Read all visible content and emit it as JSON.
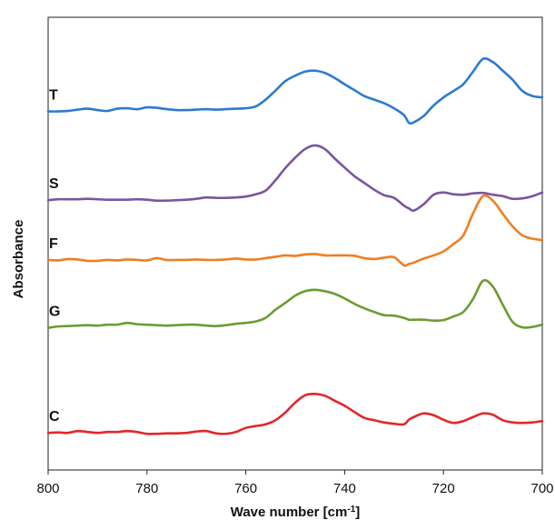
{
  "chart_data": {
    "type": "line",
    "title": "",
    "xlabel": "Wave number [cm",
    "xlabel_sup": "-1",
    "xlabel_tail": "]",
    "ylabel": "Absorbance",
    "xlim": [
      800,
      700
    ],
    "x_reversed": true,
    "ylim": [
      0,
      1
    ],
    "y_ticks_shown": false,
    "grid": false,
    "legend": "none",
    "x_ticks": [
      "800",
      "780",
      "760",
      "740",
      "720",
      "700"
    ],
    "x": [
      800,
      798,
      796,
      794,
      792,
      790,
      788,
      786,
      784,
      782,
      780,
      778,
      776,
      774,
      772,
      770,
      768,
      766,
      764,
      762,
      760,
      758,
      756,
      754,
      752,
      750,
      748,
      746,
      744,
      742,
      740,
      738,
      736,
      734,
      732,
      730,
      728,
      727,
      726,
      724,
      722,
      720,
      718,
      716,
      714,
      712,
      710,
      708,
      706,
      704,
      702,
      700
    ],
    "series": [
      {
        "name": "T",
        "color": "#2b7bcd",
        "values": [
          0.792,
          0.792,
          0.793,
          0.796,
          0.798,
          0.795,
          0.793,
          0.798,
          0.799,
          0.797,
          0.801,
          0.8,
          0.797,
          0.795,
          0.795,
          0.796,
          0.797,
          0.796,
          0.797,
          0.798,
          0.799,
          0.803,
          0.818,
          0.838,
          0.859,
          0.871,
          0.88,
          0.882,
          0.877,
          0.866,
          0.852,
          0.839,
          0.826,
          0.818,
          0.81,
          0.799,
          0.784,
          0.767,
          0.768,
          0.782,
          0.805,
          0.823,
          0.837,
          0.852,
          0.88,
          0.908,
          0.901,
          0.882,
          0.862,
          0.837,
          0.826,
          0.823
        ]
      },
      {
        "name": "S",
        "color": "#7a55a1",
        "values": [
          0.596,
          0.598,
          0.598,
          0.598,
          0.599,
          0.598,
          0.597,
          0.597,
          0.597,
          0.598,
          0.597,
          0.595,
          0.595,
          0.596,
          0.597,
          0.599,
          0.602,
          0.601,
          0.601,
          0.602,
          0.604,
          0.609,
          0.617,
          0.64,
          0.667,
          0.69,
          0.709,
          0.717,
          0.709,
          0.688,
          0.668,
          0.649,
          0.634,
          0.619,
          0.607,
          0.601,
          0.584,
          0.578,
          0.573,
          0.587,
          0.608,
          0.613,
          0.609,
          0.608,
          0.611,
          0.612,
          0.608,
          0.605,
          0.599,
          0.6,
          0.605,
          0.613
        ]
      },
      {
        "name": "F",
        "color": "#f07e21",
        "values": [
          0.464,
          0.463,
          0.466,
          0.465,
          0.462,
          0.462,
          0.464,
          0.463,
          0.465,
          0.464,
          0.463,
          0.468,
          0.464,
          0.464,
          0.464,
          0.465,
          0.464,
          0.464,
          0.465,
          0.467,
          0.465,
          0.465,
          0.468,
          0.471,
          0.474,
          0.473,
          0.476,
          0.477,
          0.474,
          0.474,
          0.474,
          0.473,
          0.468,
          0.466,
          0.469,
          0.47,
          0.452,
          0.455,
          0.458,
          0.467,
          0.474,
          0.483,
          0.499,
          0.518,
          0.567,
          0.605,
          0.595,
          0.566,
          0.538,
          0.518,
          0.511,
          0.508
        ]
      },
      {
        "name": "G",
        "color": "#6b9c34",
        "values": [
          0.314,
          0.317,
          0.318,
          0.319,
          0.32,
          0.319,
          0.321,
          0.321,
          0.325,
          0.322,
          0.321,
          0.32,
          0.319,
          0.32,
          0.321,
          0.321,
          0.319,
          0.318,
          0.32,
          0.323,
          0.325,
          0.328,
          0.336,
          0.354,
          0.369,
          0.385,
          0.395,
          0.398,
          0.395,
          0.389,
          0.379,
          0.367,
          0.357,
          0.349,
          0.342,
          0.341,
          0.336,
          0.332,
          0.332,
          0.332,
          0.33,
          0.331,
          0.339,
          0.349,
          0.378,
          0.418,
          0.405,
          0.365,
          0.327,
          0.315,
          0.316,
          0.321
        ]
      },
      {
        "name": "C",
        "color": "#e3262a",
        "values": [
          0.082,
          0.083,
          0.082,
          0.086,
          0.084,
          0.082,
          0.084,
          0.084,
          0.086,
          0.084,
          0.08,
          0.08,
          0.081,
          0.081,
          0.082,
          0.085,
          0.086,
          0.081,
          0.08,
          0.084,
          0.093,
          0.097,
          0.101,
          0.11,
          0.127,
          0.149,
          0.165,
          0.168,
          0.164,
          0.153,
          0.142,
          0.128,
          0.115,
          0.11,
          0.105,
          0.102,
          0.101,
          0.111,
          0.117,
          0.125,
          0.121,
          0.111,
          0.104,
          0.108,
          0.117,
          0.125,
          0.122,
          0.11,
          0.105,
          0.104,
          0.105,
          0.108
        ]
      }
    ]
  }
}
